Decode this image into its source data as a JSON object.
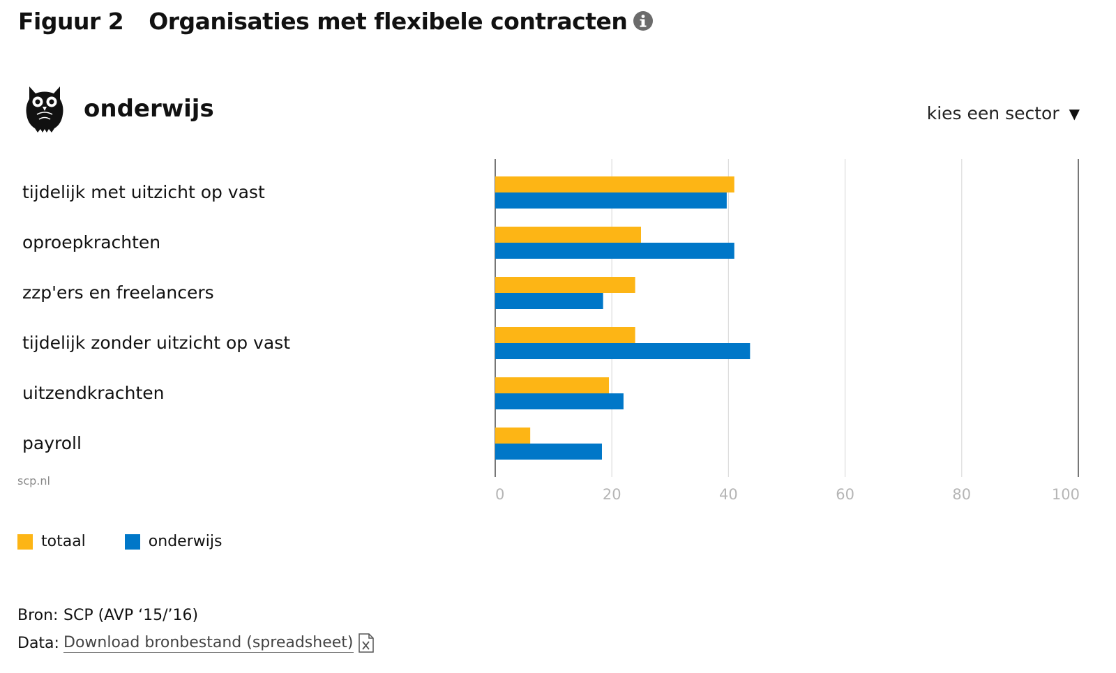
{
  "header": {
    "figure_number": "Figuur 2",
    "title": "Organisaties met flexibele contracten",
    "info_icon": "info-circle-icon"
  },
  "sector": {
    "name": "onderwijs",
    "icon": "owl-icon",
    "selector_label": "kies een sector",
    "selector_arrow": "▼"
  },
  "credit": "scp.nl",
  "chart_data": {
    "type": "bar",
    "orientation": "horizontal",
    "categories": [
      "tijdelijk met uitzicht op vast",
      "oproepkrachten",
      "zzp'ers en freelancers",
      "tijdelijk zonder uitzicht op vast",
      "uitzendkrachten",
      "payroll"
    ],
    "series": [
      {
        "name": "totaal",
        "color": "#fdb515",
        "values": [
          41,
          25,
          24,
          24,
          19.5,
          6
        ]
      },
      {
        "name": "onderwijs",
        "color": "#0077c8",
        "values": [
          39.7,
          41,
          18.5,
          43.7,
          22,
          18.3
        ]
      }
    ],
    "xlim": [
      0,
      100
    ],
    "xticks": [
      "0",
      "20",
      "40",
      "60",
      "80",
      "100"
    ],
    "grid": true,
    "legend_position": "bottom-left"
  },
  "legend": [
    {
      "label": "totaal",
      "color": "#fdb515"
    },
    {
      "label": "onderwijs",
      "color": "#0077c8"
    }
  ],
  "footer": {
    "source_key": "Bron:",
    "source_value": "SCP (AVP ‘15/’16)",
    "data_key": "Data:",
    "download_label": "Download bronbestand (spreadsheet)",
    "download_icon": "spreadsheet-file-icon"
  }
}
